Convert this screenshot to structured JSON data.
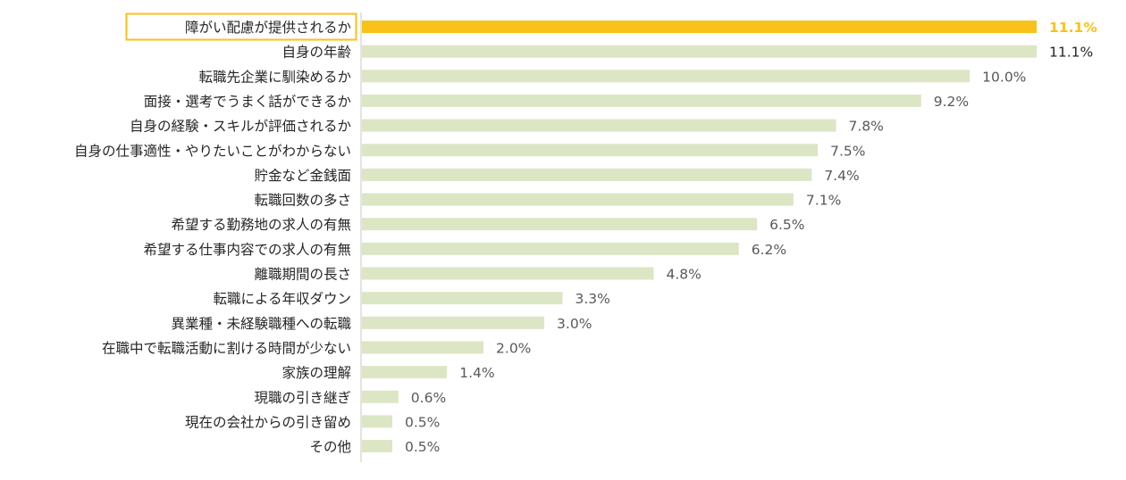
{
  "chart_data": {
    "type": "bar",
    "orientation": "horizontal",
    "categories": [
      "障がい配慮が提供されるか",
      "自身の年齢",
      "転職先企業に馴染めるか",
      "面接・選考でうまく話ができるか",
      "自身の経験・スキルが評価されるか",
      "自身の仕事適性・やりたいことがわからない",
      "貯金など金銭面",
      "転職回数の多さ",
      "希望する勤務地の求人の有無",
      "希望する仕事内容での求人の有無",
      "離職期間の長さ",
      "転職による年収ダウン",
      "異業種・未経験職種への転職",
      "在職中で転職活動に割ける時間が少ない",
      "家族の理解",
      "現職の引き継ぎ",
      "現在の会社からの引き留め",
      "その他"
    ],
    "values": [
      11.1,
      11.1,
      10.0,
      9.2,
      7.8,
      7.5,
      7.4,
      7.1,
      6.5,
      6.2,
      4.8,
      3.3,
      3.0,
      2.0,
      1.4,
      0.6,
      0.5,
      0.5
    ],
    "value_labels": [
      "11.1%",
      "11.1%",
      "10.0%",
      "9.2%",
      "7.8%",
      "7.5%",
      "7.4%",
      "7.1%",
      "6.5%",
      "6.2%",
      "4.8%",
      "3.3%",
      "3.0%",
      "2.0%",
      "1.4%",
      "0.6%",
      "0.5%",
      "0.5%"
    ],
    "highlight_index": 0,
    "title": "",
    "xlabel": "",
    "ylabel": "",
    "xlim": [
      0,
      11.1
    ],
    "grid": false,
    "colors": {
      "bar": "#dce6c4",
      "highlight_bar": "#f8c21a",
      "highlight_label_border": "#f8c21a",
      "highlight_value_text": "#f8c21a",
      "axis_line": "#c8c8c8",
      "label_text": "#262626",
      "value_text": "#595959",
      "first_plain_value_text": "#262626"
    }
  }
}
